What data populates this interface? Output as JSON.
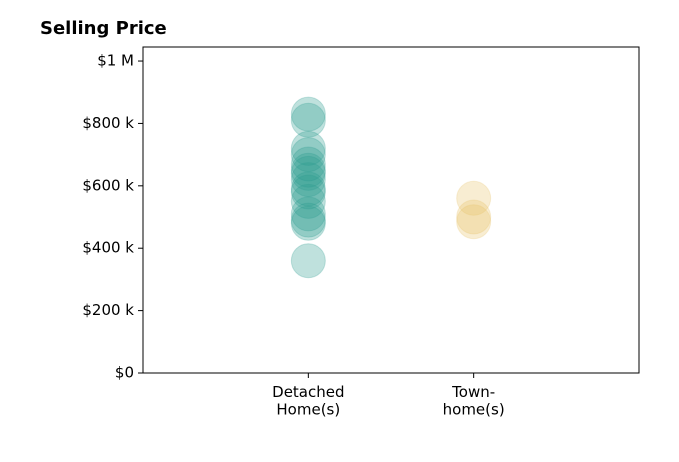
{
  "chart_data": {
    "type": "strip",
    "title": "Selling Price",
    "categories": [
      "Detached\nHome(s)",
      "Town-\nhome(s)"
    ],
    "values": [
      [
        830000,
        810000,
        720000,
        700000,
        670000,
        650000,
        640000,
        620000,
        590000,
        580000,
        550000,
        510000,
        490000,
        480000,
        360000
      ],
      [
        560000,
        500000,
        485000
      ]
    ],
    "colors": [
      "#2a9d8f",
      "#e9c46a"
    ],
    "xlim": [
      -1,
      2
    ],
    "ylim": [
      0,
      1045000
    ],
    "yticks": [
      {
        "value": 0,
        "label": "$0"
      },
      {
        "value": 200000,
        "label": "$200 k"
      },
      {
        "value": 400000,
        "label": "$400 k"
      },
      {
        "value": 600000,
        "label": "$600 k"
      },
      {
        "value": 800000,
        "label": "$800 k"
      },
      {
        "value": 1000000,
        "label": "$1 M"
      }
    ]
  }
}
